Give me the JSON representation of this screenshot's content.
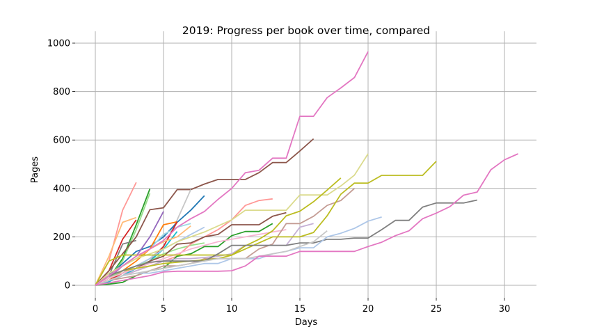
{
  "chart_data": {
    "type": "line",
    "title": "2019: Progress per book over time, compared",
    "xlabel": "Days",
    "ylabel": "Pages",
    "xlim": [
      -1.5,
      32.5
    ],
    "ylim": [
      -30,
      1010
    ],
    "xticks": [
      0,
      5,
      10,
      15,
      20,
      25,
      30
    ],
    "yticks": [
      0,
      200,
      400,
      600,
      800,
      1000
    ],
    "grid": true,
    "legend": "none",
    "series": [
      {
        "color": "#ff9896",
        "values": [
          0,
          100,
          310,
          425
        ]
      },
      {
        "color": "#ffbb78",
        "values": [
          0,
          120,
          260,
          280
        ]
      },
      {
        "color": "#d62728",
        "values": [
          0,
          60,
          190,
          270
        ]
      },
      {
        "color": "#2ca02c",
        "values": [
          0,
          30,
          110,
          250,
          398
        ]
      },
      {
        "color": "#98df8a",
        "values": [
          0,
          30,
          100,
          230,
          380
        ]
      },
      {
        "color": "#7f7f7f",
        "values": [
          0,
          40,
          170,
          185
        ]
      },
      {
        "color": "#8c564b",
        "values": [
          0,
          60,
          130,
          200,
          312,
          320,
          395,
          395,
          418,
          437,
          437,
          437,
          465,
          507,
          507,
          555,
          605
        ]
      },
      {
        "color": "#c7c7c7",
        "values": [
          0,
          20,
          50,
          80,
          110,
          160,
          270,
          395
        ]
      },
      {
        "color": "#1f77b4",
        "values": [
          0,
          40,
          90,
          140,
          160,
          200,
          260,
          310,
          370
        ]
      },
      {
        "color": "#9467bd",
        "values": [
          0,
          30,
          80,
          120,
          200,
          305
        ]
      },
      {
        "color": "#9edae5",
        "values": [
          0,
          40,
          80,
          110,
          150,
          210,
          240,
          255
        ]
      },
      {
        "color": "#ff7f0e",
        "values": [
          0,
          20,
          60,
          100,
          150,
          250,
          262
        ]
      },
      {
        "color": "#d62728",
        "values": [
          0,
          20,
          50,
          70,
          100,
          160,
          262
        ]
      },
      {
        "color": "#17becf",
        "values": [
          0,
          15,
          40,
          70,
          100,
          150,
          222
        ]
      },
      {
        "color": "#ffbb78",
        "values": [
          0,
          40,
          80,
          110,
          150,
          180,
          200,
          245
        ]
      },
      {
        "color": "#aec7e8",
        "values": [
          0,
          30,
          60,
          80,
          110,
          150,
          180,
          210,
          240
        ]
      },
      {
        "color": "#98df8a",
        "values": [
          0,
          30,
          60,
          80,
          100,
          130,
          150,
          165,
          175
        ]
      },
      {
        "color": "#ff9896",
        "values": [
          0,
          20,
          40,
          60,
          80,
          100,
          120,
          170,
          200,
          230,
          270,
          330,
          350,
          357
        ]
      },
      {
        "color": "#dbdb8d",
        "values": [
          0,
          50,
          80,
          110,
          130,
          150,
          180,
          200,
          220,
          245,
          270,
          310,
          310,
          310,
          310,
          373,
          373,
          373,
          410,
          455,
          543
        ]
      },
      {
        "color": "#8c564b",
        "values": [
          0,
          30,
          50,
          70,
          100,
          120,
          170,
          175,
          200,
          210,
          250,
          250,
          250,
          285,
          300
        ]
      },
      {
        "color": "#2ca02c",
        "values": [
          0,
          5,
          12,
          40,
          60,
          70,
          120,
          130,
          160,
          160,
          205,
          222,
          222,
          255
        ]
      },
      {
        "color": "#c5b0d5",
        "values": [
          0,
          20,
          40,
          60,
          80,
          100,
          110,
          110,
          115,
          120,
          130,
          165,
          165,
          165,
          165,
          240,
          255
        ]
      },
      {
        "color": "#f7b6d2",
        "values": [
          0,
          30,
          50,
          70,
          90,
          110,
          130,
          150,
          165,
          180,
          190,
          200,
          210,
          220,
          230
        ]
      },
      {
        "color": "#c49c94",
        "values": [
          0,
          20,
          30,
          40,
          60,
          80,
          80,
          90,
          110,
          110,
          110,
          110,
          150,
          170,
          255,
          255,
          285,
          330,
          350,
          400
        ]
      },
      {
        "color": "#bcbd22",
        "values": [
          0,
          100,
          125,
          125,
          125,
          125,
          125,
          125,
          125,
          125,
          125,
          150,
          175,
          200,
          200,
          200,
          218,
          287,
          376,
          422,
          422,
          454,
          454,
          454,
          454,
          512
        ]
      },
      {
        "color": "#bcbd22",
        "values": [
          0,
          40,
          60,
          70,
          80,
          90,
          95,
          100,
          105,
          110,
          124,
          163,
          190,
          225,
          287,
          306,
          345,
          393,
          443
        ]
      },
      {
        "color": "#7f7f7f",
        "values": [
          0,
          40,
          60,
          80,
          95,
          100,
          100,
          100,
          100,
          130,
          165,
          165,
          165,
          165,
          165,
          175,
          175,
          190,
          190,
          195,
          195,
          230,
          268,
          268,
          323,
          340,
          340,
          340,
          352
        ]
      },
      {
        "color": "#aec7e8",
        "values": [
          0,
          20,
          40,
          50,
          50,
          60,
          70,
          80,
          90,
          90,
          110,
          110,
          110,
          130,
          140,
          155,
          155,
          200,
          215,
          235,
          265,
          282
        ]
      },
      {
        "color": "#c7c7c7",
        "values": [
          0,
          20,
          40,
          50,
          60,
          70,
          80,
          90,
          100,
          110,
          110,
          110,
          120,
          130,
          140,
          160,
          180,
          225
        ]
      },
      {
        "color": "#e377c2",
        "values": [
          0,
          40,
          80,
          120,
          150,
          185,
          240,
          275,
          305,
          355,
          400,
          465,
          475,
          525,
          525,
          698,
          698,
          775,
          815,
          858,
          965
        ]
      },
      {
        "color": "#e377c2",
        "values": [
          0,
          10,
          20,
          30,
          40,
          55,
          58,
          58,
          58,
          58,
          60,
          80,
          120,
          120,
          120,
          140,
          140,
          140,
          140,
          140,
          160,
          178,
          205,
          225,
          275,
          298,
          325,
          372,
          385,
          477,
          518,
          543
        ]
      }
    ]
  }
}
